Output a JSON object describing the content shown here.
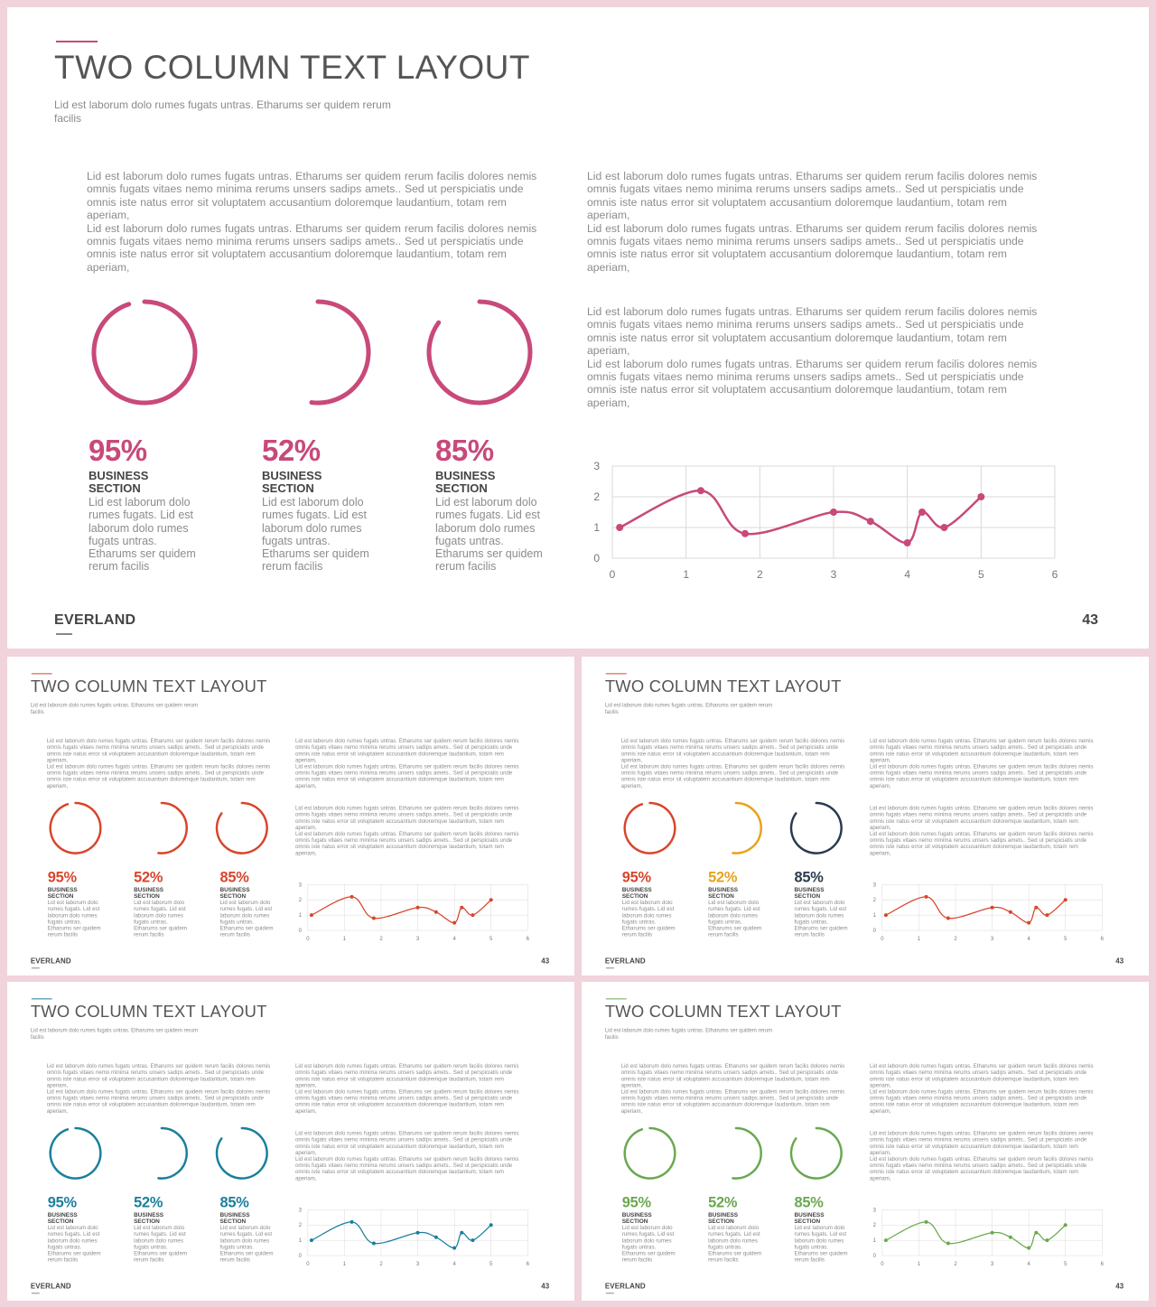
{
  "slide": {
    "title": "TWO COLUMN TEXT LAYOUT",
    "subtitle": "Lid est laborum dolo rumes fugats untras. Etharums ser quidem rerum facilis",
    "paragraph": "Lid est laborum dolo rumes fugats untras. Etharums ser quidem rerum facilis dolores nemis omnis fugats vitaes nemo minima rerums unsers sadips amets.. Sed ut perspiciatis unde omnis iste natus error sit voluptatem accusantium doloremque laudantium, totam rem aperiam,",
    "stats": [
      {
        "percent": "95%",
        "value": 95,
        "label": "BUSINESS SECTION",
        "desc": "Lid est laborum dolo rumes fugats. Lid est laborum dolo rumes fugats untras. Etharums ser quidem rerum facilis"
      },
      {
        "percent": "52%",
        "value": 52,
        "label": "BUSINESS SECTION",
        "desc": "Lid est laborum dolo rumes fugats. Lid est laborum dolo rumes fugats untras. Etharums ser quidem rerum facilis"
      },
      {
        "percent": "85%",
        "value": 85,
        "label": "BUSINESS SECTION",
        "desc": "Lid est laborum dolo rumes fugats. Lid est laborum dolo rumes fugats untras. Etharums ser quidem rerum facilis"
      }
    ],
    "brand": "EVERLAND",
    "page_number": "43"
  },
  "variants": [
    {
      "name": "main",
      "colors": [
        "#c8497a",
        "#c8497a",
        "#c8497a"
      ],
      "line": "#c8497a"
    },
    {
      "name": "red",
      "colors": [
        "#d8452c",
        "#d8452c",
        "#d8452c"
      ],
      "line": "#d8452c"
    },
    {
      "name": "multi",
      "colors": [
        "#d8452c",
        "#e8a21c",
        "#2a3a4f"
      ],
      "line": "#d8452c"
    },
    {
      "name": "blue",
      "colors": [
        "#1a7f9c",
        "#1a7f9c",
        "#1a7f9c"
      ],
      "line": "#1a7f9c"
    },
    {
      "name": "green",
      "colors": [
        "#6aa84f",
        "#6aa84f",
        "#6aa84f"
      ],
      "line": "#6aa84f"
    }
  ],
  "chart_data": {
    "type": "scatter",
    "x": [
      0.1,
      1.2,
      1.8,
      3,
      3.5,
      4,
      4.2,
      4.5,
      5
    ],
    "y": [
      1,
      2.2,
      0.8,
      1.5,
      1.2,
      0.5,
      1.5,
      1,
      2
    ],
    "xlim": [
      0,
      6
    ],
    "ylim": [
      0,
      3
    ],
    "x_ticks": [
      0,
      1,
      2,
      3,
      4,
      5,
      6
    ],
    "y_ticks": [
      0,
      1,
      2,
      3
    ],
    "grid": true,
    "smooth": true
  }
}
